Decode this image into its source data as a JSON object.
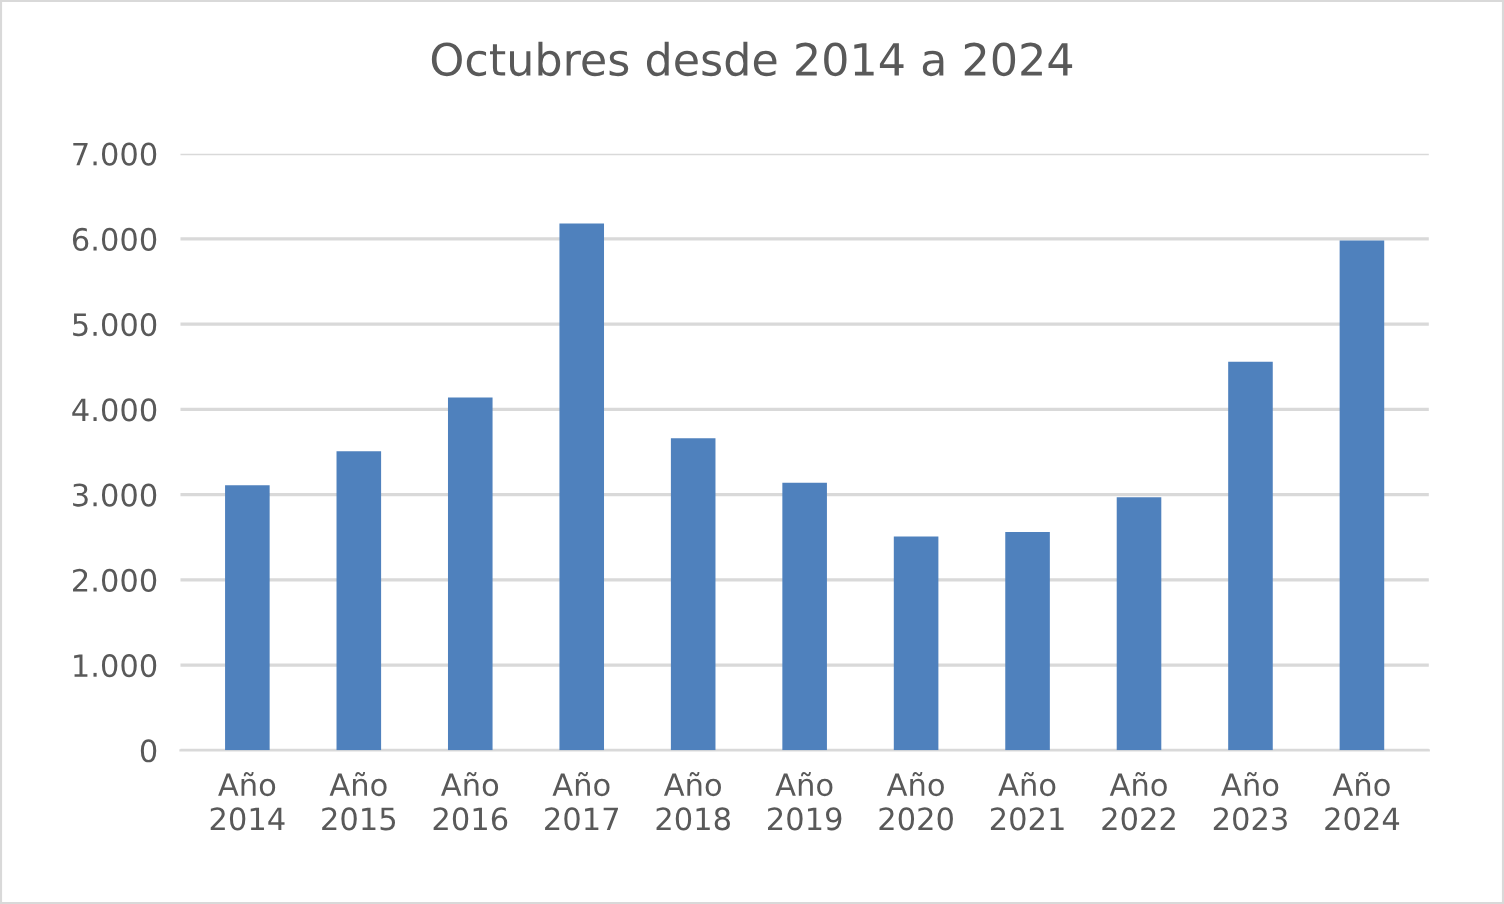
{
  "chart_data": {
    "type": "bar",
    "title": "Octubres desde 2014 a 2024",
    "categories": [
      "Año 2014",
      "Año 2015",
      "Año 2016",
      "Año 2017",
      "Año 2018",
      "Año 2019",
      "Año 2020",
      "Año 2021",
      "Año 2022",
      "Año 2023",
      "Año 2024"
    ],
    "values": [
      3110,
      3510,
      4140,
      6180,
      3660,
      3140,
      2510,
      2560,
      2970,
      4560,
      5980
    ],
    "color": "#4f81bd",
    "ylim": [
      0,
      7000
    ],
    "yticks": [
      {
        "value": 0,
        "label": "0"
      },
      {
        "value": 1000,
        "label": "1.000"
      },
      {
        "value": 2000,
        "label": "2.000"
      },
      {
        "value": 3000,
        "label": "3.000"
      },
      {
        "value": 4000,
        "label": "4.000"
      },
      {
        "value": 5000,
        "label": "5.000"
      },
      {
        "value": 6000,
        "label": "6.000"
      },
      {
        "value": 7000,
        "label": "7.000"
      }
    ],
    "grid": "y"
  }
}
